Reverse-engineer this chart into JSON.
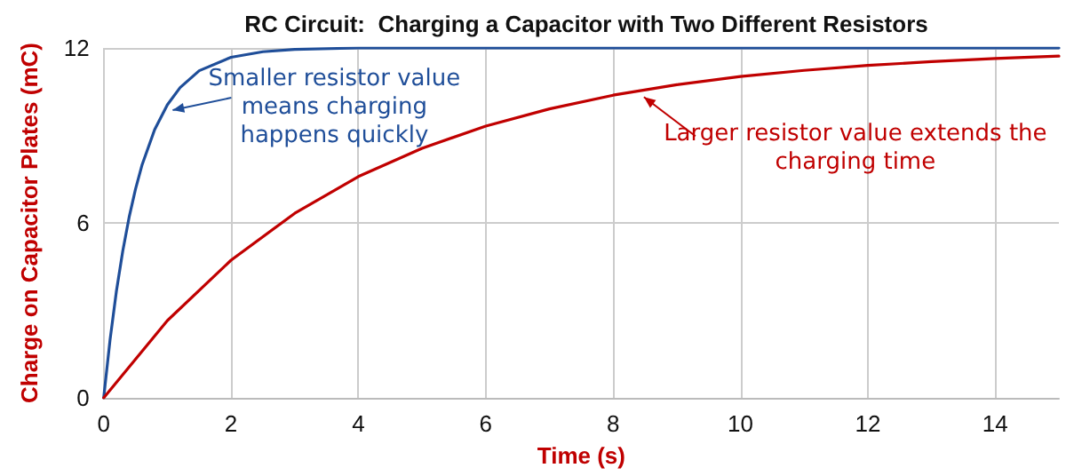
{
  "chart_data": {
    "type": "line",
    "title": "RC Circuit:  Charging a Capacitor with Two Different Resistors",
    "xlabel": "Time (s)",
    "ylabel": "Charge on Capacitor Plates (mC)",
    "xlim": [
      0,
      15
    ],
    "xticks": [
      0,
      2,
      4,
      6,
      8,
      10,
      12,
      14
    ],
    "ylim": [
      0,
      12
    ],
    "yticks": [
      0,
      6,
      12
    ],
    "grid": true,
    "marker": "none",
    "series": [
      {
        "color": "#1f4e99",
        "x": [
          0,
          0.1,
          0.2,
          0.3,
          0.4,
          0.5,
          0.6,
          0.8,
          1,
          1.2,
          1.5,
          2,
          2.5,
          3,
          4,
          6,
          8,
          10,
          12,
          15
        ],
        "values": [
          0,
          1.99,
          3.66,
          5.04,
          6.2,
          7.16,
          7.97,
          9.2,
          10.05,
          10.64,
          11.22,
          11.68,
          11.87,
          11.95,
          12,
          12,
          12,
          12,
          12,
          12
        ]
      },
      {
        "color": "#c00000",
        "x": [
          0,
          1,
          2,
          3,
          4,
          5,
          6,
          7,
          8,
          9,
          10,
          11,
          12,
          13,
          14,
          15
        ],
        "values": [
          0,
          2.65,
          4.72,
          6.33,
          7.59,
          8.56,
          9.32,
          9.91,
          10.38,
          10.74,
          11.02,
          11.23,
          11.4,
          11.53,
          11.64,
          11.72
        ]
      }
    ],
    "annotations": [
      {
        "text": "Smaller resistor value means charging happens quickly",
        "x": 1,
        "y": 10.05
      },
      {
        "text": "Larger resistor value extends the charging time",
        "x": 8.4,
        "y": 10.5
      }
    ]
  }
}
